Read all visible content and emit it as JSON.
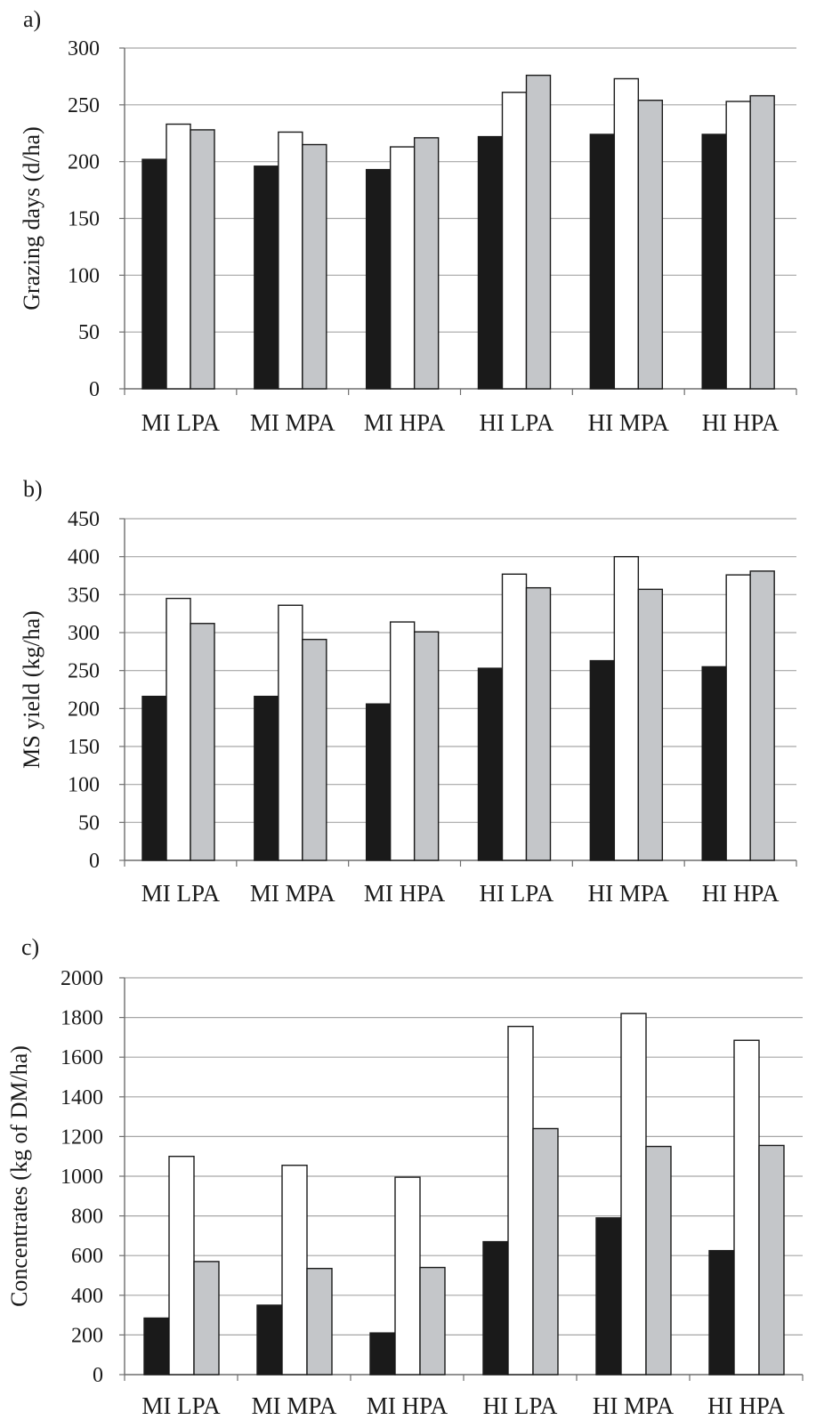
{
  "chart_data": [
    {
      "type": "bar",
      "panel_label": "a)",
      "ylabel": "Grazing days (d/ha)",
      "xlabel": "",
      "categories": [
        "MI LPA",
        "MI MPA",
        "MI HPA",
        "HI LPA",
        "HI MPA",
        "HI HPA"
      ],
      "ylim": [
        0,
        300
      ],
      "yticks": [
        0,
        50,
        100,
        150,
        200,
        250,
        300
      ],
      "grid": true,
      "legend": "none",
      "series": [
        {
          "values": [
            202,
            196,
            193,
            222,
            224,
            224
          ],
          "color": "#1a1a1a"
        },
        {
          "values": [
            233,
            226,
            213,
            261,
            273,
            253
          ],
          "color": "#ffffff"
        },
        {
          "values": [
            228,
            215,
            221,
            276,
            254,
            258
          ],
          "color": "#c4c6c9"
        }
      ]
    },
    {
      "type": "bar",
      "panel_label": "b)",
      "ylabel": "MS yield (kg/ha)",
      "xlabel": "",
      "categories": [
        "MI LPA",
        "MI MPA",
        "MI HPA",
        "HI LPA",
        "HI MPA",
        "HI HPA"
      ],
      "ylim": [
        0,
        450
      ],
      "yticks": [
        0,
        50,
        100,
        150,
        200,
        250,
        300,
        350,
        400,
        450
      ],
      "grid": true,
      "legend": "none",
      "series": [
        {
          "values": [
            216,
            216,
            206,
            253,
            263,
            255
          ],
          "color": "#1a1a1a"
        },
        {
          "values": [
            345,
            336,
            314,
            377,
            400,
            376
          ],
          "color": "#ffffff"
        },
        {
          "values": [
            312,
            291,
            301,
            359,
            357,
            381
          ],
          "color": "#c4c6c9"
        }
      ]
    },
    {
      "type": "bar",
      "panel_label": "c)",
      "ylabel": "Concentrates (kg of DM/ha)",
      "xlabel": "",
      "categories": [
        "MI LPA",
        "MI MPA",
        "MI HPA",
        "HI LPA",
        "HI MPA",
        "HI HPA"
      ],
      "ylim": [
        0,
        2000
      ],
      "yticks": [
        0,
        200,
        400,
        600,
        800,
        1000,
        1200,
        1400,
        1600,
        1800,
        2000
      ],
      "grid": true,
      "legend": "none",
      "series": [
        {
          "values": [
            285,
            350,
            210,
            670,
            790,
            625
          ],
          "color": "#1a1a1a"
        },
        {
          "values": [
            1100,
            1055,
            995,
            1755,
            1820,
            1685
          ],
          "color": "#ffffff"
        },
        {
          "values": [
            570,
            535,
            540,
            1240,
            1150,
            1155
          ],
          "color": "#c4c6c9"
        }
      ]
    }
  ]
}
